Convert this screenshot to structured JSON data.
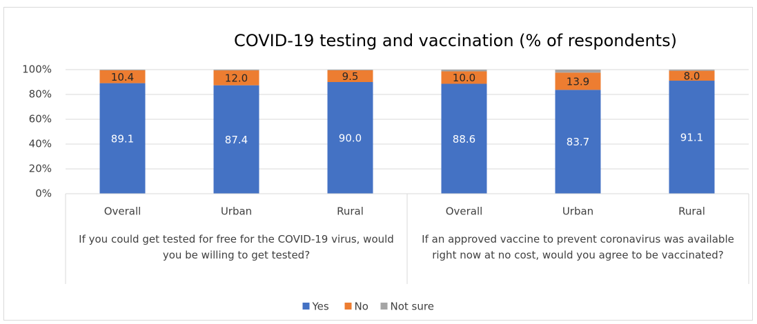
{
  "chart_data": {
    "type": "stacked_bar",
    "title": "COVID-19 testing and vaccination (% of respondents)",
    "groups": [
      {
        "label": "If you could get tested for free for the COVID-19 virus, would you be willing to get tested?",
        "categories": [
          "Overall",
          "Urban",
          "Rural"
        ]
      },
      {
        "label": "If an approved vaccine to prevent coronavirus was available right now at no cost, would you agree to be vaccinated?",
        "categories": [
          "Overall",
          "Urban",
          "Rural"
        ]
      }
    ],
    "series": [
      {
        "name": "Yes",
        "color": "#4472c4",
        "values": [
          89.1,
          87.4,
          90.0,
          88.6,
          83.7,
          91.1
        ],
        "value_labels": [
          "89.1",
          "87.4",
          "90.0",
          "88.6",
          "83.7",
          "91.1"
        ]
      },
      {
        "name": "No",
        "color": "#ed7d31",
        "values": [
          10.4,
          12.0,
          9.5,
          10.0,
          13.9,
          8.0
        ],
        "value_labels": [
          "10.4",
          "12.0",
          "9.5",
          "10.0",
          "13.9",
          "8.0"
        ]
      },
      {
        "name": "Not sure",
        "color": "#a5a5a5",
        "values": [
          0.5,
          0.6,
          0.5,
          1.4,
          2.4,
          0.9
        ]
      }
    ],
    "ylim": [
      0,
      100
    ],
    "yticks": [
      {
        "value": 0,
        "label": "0%"
      },
      {
        "value": 20,
        "label": "20%"
      },
      {
        "value": 40,
        "label": "40%"
      },
      {
        "value": 60,
        "label": "60%"
      },
      {
        "value": 80,
        "label": "80%"
      },
      {
        "value": 100,
        "label": "100%"
      }
    ],
    "grid": true,
    "legend": "bottom"
  }
}
